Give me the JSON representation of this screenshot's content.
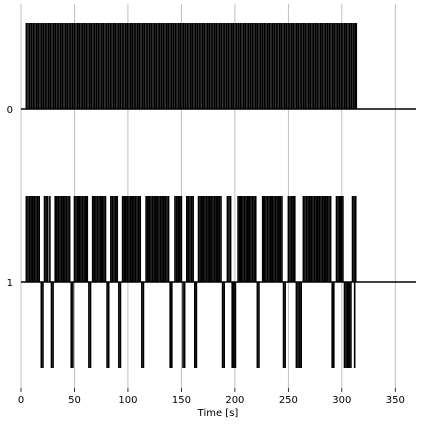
{
  "chart_data": {
    "type": "spike-raster",
    "xlabel": "Time [s]",
    "xlim": [
      0,
      360
    ],
    "xticks": [
      0,
      50,
      100,
      150,
      200,
      250,
      300,
      350
    ],
    "grid": "vertical",
    "rows": [
      {
        "label": "0",
        "spike_direction": "up",
        "spike_times": [
          5,
          6.6,
          8.2,
          9.8,
          11.4,
          13,
          14.6,
          16.2,
          17.8,
          19.4,
          21,
          22.6,
          24.2,
          25.8,
          27.4,
          29,
          30.6,
          32.2,
          33.8,
          35.4,
          37,
          38.6,
          40.2,
          41.8,
          43.4,
          45,
          46.6,
          48.2,
          49.8,
          51.4,
          53,
          54.6,
          56.2,
          57.8,
          59.4,
          61,
          62.6,
          64.2,
          65.8,
          67.4,
          69,
          70.6,
          72.2,
          73.8,
          75.4,
          77,
          78.6,
          80.2,
          81.8,
          83.4,
          85,
          86.6,
          88.2,
          89.8,
          91.4,
          93,
          94.6,
          96.2,
          97.8,
          99.4,
          101,
          102.6,
          104.2,
          105.8,
          107.4,
          109,
          110.6,
          112.2,
          113.8,
          115.4,
          117,
          118.6,
          120.2,
          121.8,
          123.4,
          125,
          126.6,
          128.2,
          129.8,
          131.4,
          133,
          134.6,
          136.2,
          137.8,
          139.4,
          141,
          142.6,
          144.2,
          145.8,
          147.4,
          149,
          150.6,
          152.2,
          153.8,
          155.4,
          157,
          158.6,
          160.2,
          161.8,
          163.4,
          165,
          166.6,
          168.2,
          169.8,
          171.4,
          173,
          174.6,
          176.2,
          177.8,
          179.4,
          181,
          182.6,
          184.2,
          185.8,
          187.4,
          189,
          190.6,
          192.2,
          193.8,
          195.4,
          197,
          198.6,
          200.2,
          201.8,
          203.4,
          205,
          206.6,
          208.2,
          209.8,
          211.4,
          213,
          214.6,
          216.2,
          217.8,
          219.4,
          221,
          222.6,
          224.2,
          225.8,
          227.4,
          229,
          230.6,
          232.2,
          233.8,
          235.4,
          237,
          238.6,
          240.2,
          241.8,
          243.4,
          245,
          246.6,
          248.2,
          249.8,
          251.4,
          253,
          254.6,
          256.2,
          257.8,
          259.4,
          261,
          262.6,
          264.2,
          265.8,
          267.4,
          269,
          270.6,
          272.2,
          273.8,
          275.4,
          277,
          278.6,
          280.2,
          281.8,
          283.4,
          285,
          286.6,
          288.2,
          289.8,
          291.4,
          293,
          294.6,
          296.2,
          297.8,
          299.4,
          301,
          302.6,
          304.2,
          305.8,
          307.4,
          309,
          310.6,
          312.2,
          313.5
        ]
      },
      {
        "label": "1",
        "spike_direction": "up",
        "spike_times": [
          5,
          6.5,
          8,
          9.5,
          11,
          12.5,
          14,
          15.5,
          17,
          22,
          23.5,
          25,
          27,
          32,
          33.5,
          35,
          36.5,
          38,
          39.5,
          41,
          42.5,
          44,
          45.5,
          50,
          51.5,
          53,
          54.5,
          56,
          57.5,
          59,
          60.5,
          62,
          67,
          68.5,
          70,
          71.5,
          73,
          74.5,
          76,
          77.5,
          79,
          84,
          85.5,
          87,
          88.5,
          90,
          95,
          96.5,
          98,
          99.5,
          101,
          102.5,
          104,
          105.5,
          107,
          108.5,
          110,
          111.5,
          117,
          118.5,
          120,
          121.5,
          123,
          124.5,
          126,
          127.5,
          129,
          130.5,
          132,
          133.5,
          135,
          136.5,
          138,
          144,
          145.5,
          147,
          148.5,
          150,
          155,
          156.5,
          158,
          159.5,
          161,
          166,
          167.5,
          169,
          170.5,
          172,
          173.5,
          175,
          176.5,
          178,
          179.5,
          181,
          182.5,
          184,
          185.5,
          187,
          193,
          194.5,
          196,
          203,
          204.5,
          206,
          207.5,
          209,
          210.5,
          212,
          213.5,
          215,
          216.5,
          218,
          219.5,
          226,
          227.5,
          229,
          230.5,
          232,
          233.5,
          235,
          236.5,
          238,
          239.5,
          241,
          242.5,
          244,
          250,
          251.5,
          253,
          254.5,
          256,
          264,
          265.5,
          267,
          268.5,
          270,
          271.5,
          273,
          274.5,
          276,
          277.5,
          279,
          280.5,
          282,
          283.5,
          285,
          286.5,
          288,
          289.5,
          295,
          296.5,
          298,
          299.5,
          301,
          310,
          311.5,
          313
        ]
      },
      {
        "label": "1",
        "spike_direction": "down",
        "spike_times": [
          19,
          20.5,
          28.5,
          30,
          47,
          48.5,
          63.5,
          65,
          80.5,
          82,
          91.5,
          93,
          113,
          114.5,
          139.5,
          141,
          151.5,
          153,
          162.5,
          164,
          188.5,
          190,
          197.5,
          199,
          200.5,
          221,
          222.5,
          245.5,
          247,
          257.5,
          259,
          260.5,
          262,
          291,
          292.5,
          302.5,
          304,
          305.5,
          307,
          308.5,
          312
        ]
      }
    ],
    "row_tick_labels": [
      "0",
      "1"
    ]
  }
}
